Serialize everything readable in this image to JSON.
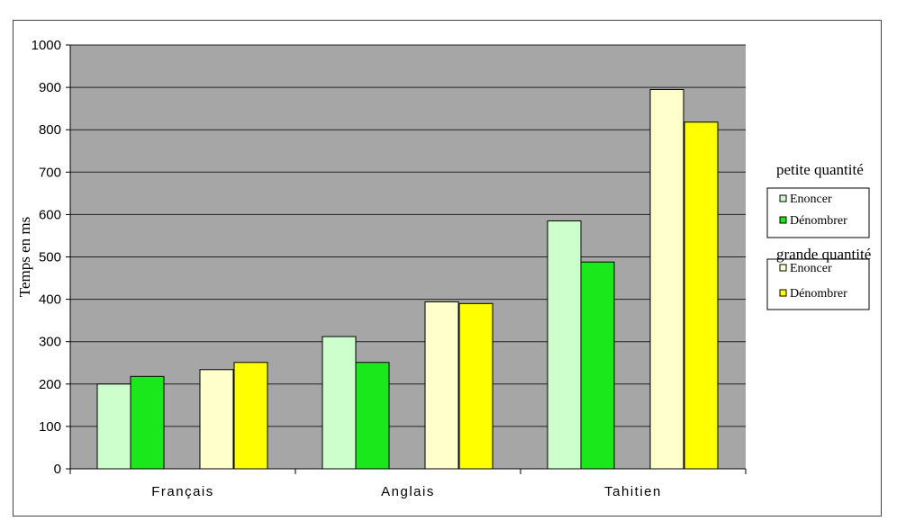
{
  "chart_data": {
    "type": "bar",
    "categories": [
      "Français",
      "Anglais",
      "Tahitien"
    ],
    "ylabel": "Temps en ms",
    "xlabel": "",
    "ylim": [
      0,
      1000
    ],
    "yticks": [
      0,
      100,
      200,
      300,
      400,
      500,
      600,
      700,
      800,
      900,
      1000
    ],
    "grid": true,
    "legend_position": "right",
    "legend_groups": [
      {
        "title": "petite quantité",
        "series": [
          0,
          1
        ]
      },
      {
        "title": "grande quantité",
        "series": [
          2,
          3
        ]
      }
    ],
    "series": [
      {
        "name": "Enoncer",
        "color": "#ccffcc",
        "values": [
          200,
          312,
          585
        ]
      },
      {
        "name": "Dénombrer",
        "color": "#1be81b",
        "values": [
          218,
          251,
          488
        ]
      },
      {
        "name": "Enoncer",
        "color": "#ffffcc",
        "values": [
          234,
          394,
          895
        ]
      },
      {
        "name": "Dénombrer",
        "color": "#ffff00",
        "values": [
          251,
          390,
          818
        ]
      }
    ],
    "plot_background": "#a6a6a6"
  }
}
